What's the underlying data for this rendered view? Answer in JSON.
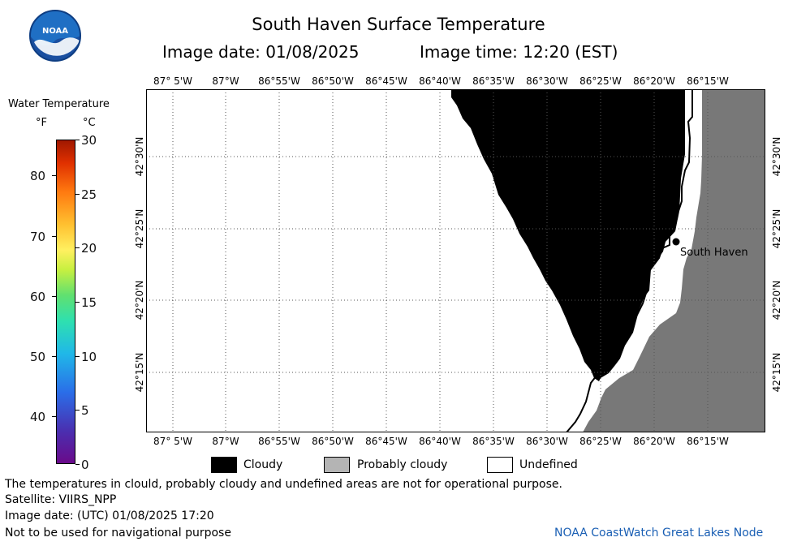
{
  "header": {
    "title": "South Haven Surface Temperature",
    "image_date": "Image date: 01/08/2025",
    "image_time": "Image time: 12:20 (EST)"
  },
  "colorbar": {
    "title": "Water Temperature",
    "unit_f": "°F",
    "unit_c": "°C",
    "f_ticks": [
      "40",
      "50",
      "60",
      "70",
      "80"
    ],
    "c_ticks": [
      "0",
      "5",
      "10",
      "15",
      "20",
      "25",
      "30"
    ]
  },
  "map": {
    "lon_labels": [
      "87° 5'W",
      "87°W",
      "86°55'W",
      "86°50'W",
      "86°45'W",
      "86°40'W",
      "86°35'W",
      "86°30'W",
      "86°25'W",
      "86°20'W",
      "86°15'W"
    ],
    "lat_labels": [
      "42°30'N",
      "42°25'N",
      "42°20'N",
      "42°15'N"
    ],
    "place_label": "South Haven"
  },
  "legend": {
    "items": [
      {
        "label": "Cloudy",
        "color": "#000000"
      },
      {
        "label": "Probably cloudy",
        "color": "#b4b4b4"
      },
      {
        "label": "Undefined",
        "color": "#ffffff"
      }
    ]
  },
  "footer": {
    "line1": "The temperatures in clould, probably cloudy and undefined areas are not for operational purpose.",
    "line2": "Satellite: VIIRS_NPP",
    "line3": "Image date: (UTC) 01/08/2025  17:20",
    "line4": "Not to be used for navigational purpose",
    "credit": "NOAA CoastWatch Great Lakes Node"
  },
  "colors": {
    "land": "#787878",
    "cloud": "#000000",
    "accent": "#1a5fb4"
  }
}
